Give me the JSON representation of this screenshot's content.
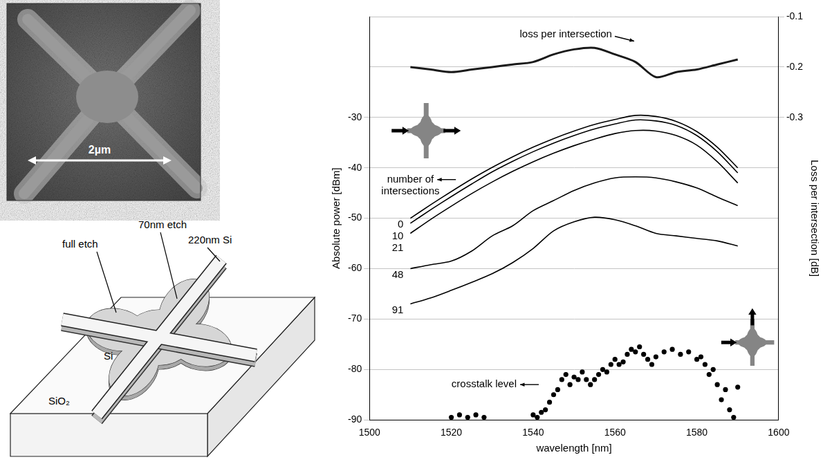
{
  "chart_data": {
    "type": "line",
    "x_label": "wavelength [nm]",
    "y_label": "Absolute power [dBm]",
    "y2_label": "Loss per intersection [dB]",
    "xlim": [
      1500,
      1600
    ],
    "xticks": [
      1500,
      1520,
      1540,
      1560,
      1580,
      1600
    ],
    "ylim": [
      -90,
      -10
    ],
    "yticks": [
      -90,
      -80,
      -70,
      -60,
      -50,
      -40,
      -30
    ],
    "y2lim": [
      -0.9,
      -0.1
    ],
    "y2ticks": [
      -0.3,
      -0.2,
      -0.1
    ],
    "grid": true,
    "series": [
      {
        "name": "0",
        "color": "#000000",
        "x": [
          1510,
          1515,
          1520,
          1525,
          1530,
          1535,
          1540,
          1545,
          1550,
          1555,
          1560,
          1565,
          1570,
          1575,
          1580,
          1585,
          1590
        ],
        "values": [
          -50,
          -47.3,
          -44.7,
          -42.2,
          -39.9,
          -37.8,
          -35.9,
          -34.2,
          -32.7,
          -31.4,
          -30.4,
          -29.6,
          -29.8,
          -30.8,
          -32.8,
          -35.9,
          -40
        ]
      },
      {
        "name": "10",
        "color": "#000000",
        "x": [
          1510,
          1515,
          1520,
          1525,
          1530,
          1535,
          1540,
          1545,
          1550,
          1555,
          1560,
          1565,
          1570,
          1575,
          1580,
          1585,
          1590
        ],
        "values": [
          -51,
          -48.3,
          -45.7,
          -43.2,
          -40.8,
          -38.7,
          -36.8,
          -35.1,
          -33.6,
          -32.3,
          -31.3,
          -30.5,
          -30.7,
          -31.6,
          -33.6,
          -36.8,
          -41
        ]
      },
      {
        "name": "21",
        "color": "#000000",
        "x": [
          1510,
          1515,
          1520,
          1525,
          1530,
          1535,
          1540,
          1545,
          1550,
          1555,
          1560,
          1565,
          1570,
          1575,
          1580,
          1585,
          1590
        ],
        "values": [
          -53,
          -50.2,
          -47.6,
          -45.1,
          -42.8,
          -40.7,
          -38.8,
          -37.1,
          -35.6,
          -34.3,
          -33.2,
          -32.6,
          -32.7,
          -33.6,
          -35.5,
          -38.8,
          -43
        ]
      },
      {
        "name": "48",
        "color": "#000000",
        "x": [
          1510,
          1515,
          1520,
          1525,
          1530,
          1535,
          1540,
          1545,
          1550,
          1555,
          1560,
          1565,
          1570,
          1575,
          1580,
          1585,
          1590
        ],
        "values": [
          -60,
          -59.2,
          -58.5,
          -56.5,
          -53.5,
          -51.5,
          -48.5,
          -46.5,
          -44.5,
          -43,
          -42,
          -41.8,
          -42,
          -42.8,
          -44,
          -45.8,
          -47.5
        ]
      },
      {
        "name": "91",
        "color": "#000000",
        "x": [
          1510,
          1515,
          1520,
          1525,
          1530,
          1535,
          1540,
          1545,
          1550,
          1555,
          1560,
          1565,
          1570,
          1575,
          1580,
          1585,
          1590
        ],
        "values": [
          -67,
          -65.8,
          -64.3,
          -62.7,
          -61,
          -58.8,
          -56,
          -52.5,
          -50.7,
          -49.8,
          -50.3,
          -51.5,
          -53,
          -53.5,
          -54,
          -54.5,
          -55.5
        ]
      },
      {
        "axis": "y2",
        "color": "#1a1a1a",
        "x": [
          1510,
          1515,
          1520,
          1525,
          1530,
          1535,
          1540,
          1545,
          1550,
          1555,
          1560,
          1565,
          1570,
          1575,
          1580,
          1585,
          1590
        ],
        "values": [
          -0.2,
          -0.205,
          -0.21,
          -0.205,
          -0.2,
          -0.195,
          -0.19,
          -0.175,
          -0.165,
          -0.162,
          -0.175,
          -0.19,
          -0.22,
          -0.21,
          -0.205,
          -0.195,
          -0.185
        ]
      },
      {
        "type": "scatter",
        "marker": "circle",
        "color": "#000000",
        "x": [
          1520,
          1522,
          1524,
          1526,
          1528,
          1534,
          1540,
          1541,
          1542,
          1543,
          1544,
          1545,
          1546,
          1547,
          1548,
          1549,
          1550,
          1551,
          1552,
          1553,
          1554,
          1555,
          1556,
          1557,
          1558,
          1559,
          1560,
          1561,
          1562,
          1563,
          1564,
          1565,
          1566,
          1567,
          1568,
          1569,
          1570,
          1572,
          1574,
          1576,
          1578,
          1580,
          1581,
          1582,
          1583,
          1584,
          1585,
          1586,
          1587,
          1588,
          1589,
          1590
        ],
        "values": [
          -89.5,
          -89,
          -89.5,
          -89,
          -89.5,
          null,
          -89,
          -89.5,
          -88.5,
          -88,
          -86.5,
          -85,
          -84,
          -82,
          -81,
          -83,
          -81.5,
          -82,
          -80.5,
          -82,
          -83,
          -82,
          -81,
          -80,
          -80.5,
          -79,
          -78,
          -79,
          -78.5,
          -77,
          -76,
          -76.5,
          -75.5,
          -77,
          -78,
          -79,
          -77.5,
          -76.5,
          -76,
          -77,
          -76.5,
          -78,
          -77.5,
          -79,
          -81,
          -80,
          -83,
          -86,
          -84,
          -88,
          -89.5,
          -83.5
        ]
      }
    ],
    "annotations": [
      {
        "text": "loss per intersection",
        "x": 1548,
        "y": -0.135,
        "axis": "y2"
      },
      {
        "text": "number of intersections",
        "x": 1510,
        "y": -43.5,
        "axis": "y"
      },
      {
        "text": "crosstalk level",
        "x": 1528,
        "y": -83,
        "axis": "y"
      }
    ]
  },
  "sem_image": {
    "scale_bar": "2µm"
  },
  "schematic": {
    "labels": [
      "full etch",
      "70nm etch",
      "220nm Si",
      "Si",
      "SiO₂"
    ]
  }
}
